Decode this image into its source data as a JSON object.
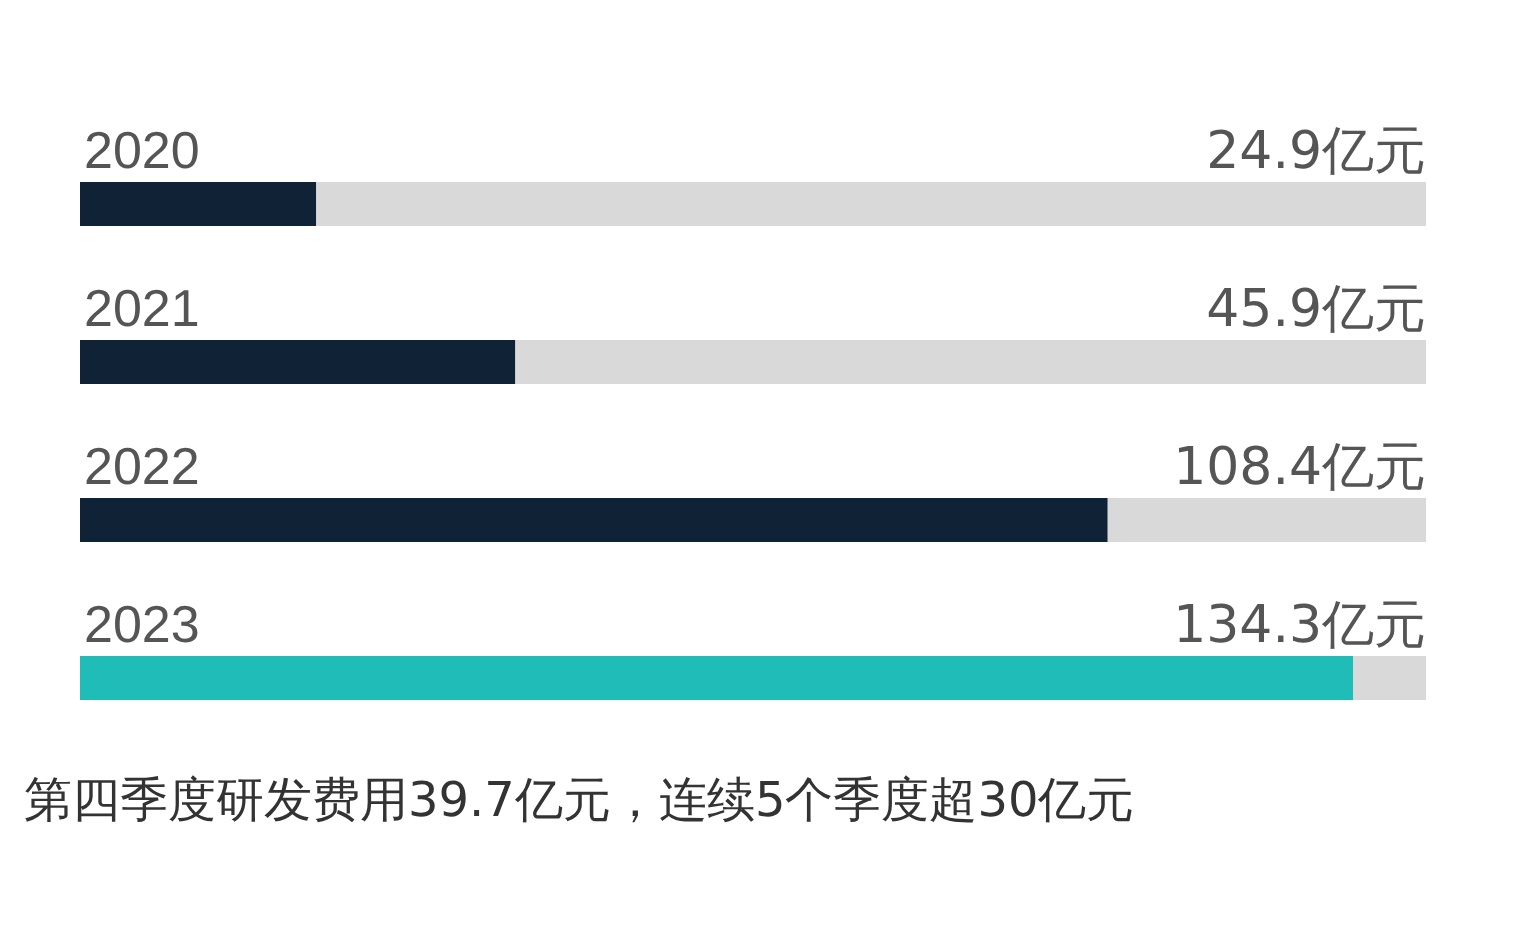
{
  "chart_data": {
    "type": "bar",
    "orientation": "horizontal",
    "title": "第四季度研发费用39.7亿元，连续5个季度超30亿元",
    "categories": [
      "2020",
      "2021",
      "2022",
      "2023"
    ],
    "values": [
      24.9,
      45.9,
      108.4,
      134.3
    ],
    "colors": [
      "#0f2236",
      "#0f2236",
      "#0f2236",
      "#20bdb8"
    ],
    "value_labels": [
      "24.9亿元",
      "45.9亿元",
      "108.4亿元",
      "134.3亿元"
    ],
    "xlim": [
      0,
      142
    ]
  }
}
